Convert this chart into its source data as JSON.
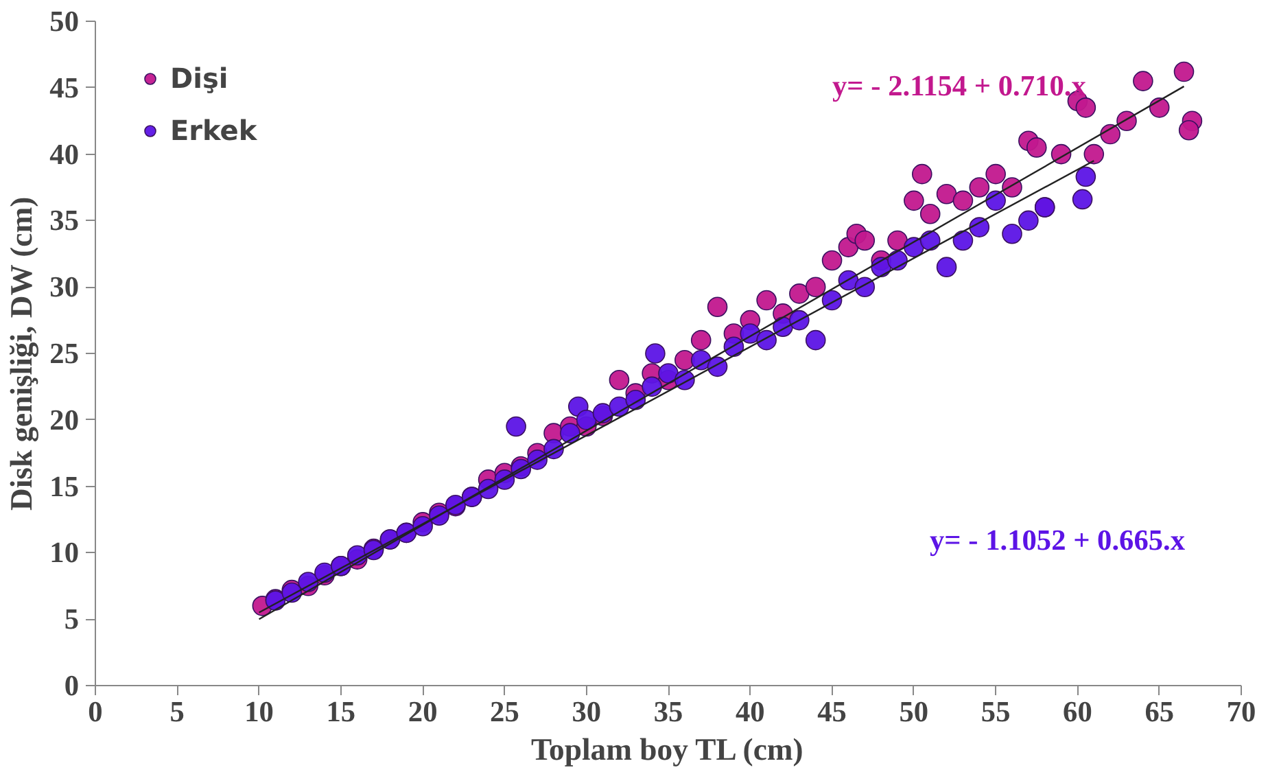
{
  "chart_data": {
    "type": "scatter",
    "xlabel": "Toplam boy TL (cm)",
    "ylabel": "Disk genişliği, DW (cm)",
    "xlim": [
      0,
      70
    ],
    "xticks": [
      0,
      5,
      10,
      15,
      20,
      25,
      30,
      35,
      40,
      45,
      50,
      55,
      60,
      65,
      70
    ],
    "ylim": [
      0,
      50
    ],
    "yticks": [
      0,
      5,
      10,
      15,
      20,
      25,
      30,
      35,
      40,
      45,
      50
    ],
    "grid": false,
    "legend": "top left",
    "marker": "circle",
    "series": [
      {
        "name": "Dişi",
        "color": "#c2188e",
        "x": [
          10.2,
          11,
          12,
          13,
          14,
          15,
          16,
          17,
          18,
          19,
          20,
          21,
          22,
          23,
          24,
          25,
          26,
          27,
          28,
          29,
          30,
          31,
          32,
          33,
          34,
          35,
          36,
          37,
          38,
          39,
          40,
          41,
          42,
          43,
          44,
          45,
          46,
          46.5,
          47,
          48,
          49,
          50,
          50.5,
          51,
          52,
          53,
          54,
          55,
          56,
          57,
          57.5,
          58,
          59,
          60,
          60.5,
          61,
          62,
          63,
          64,
          65,
          66.5,
          67,
          66.8
        ],
        "values": [
          6.0,
          6.5,
          7.2,
          7.5,
          8.3,
          9.0,
          9.5,
          10.3,
          11.0,
          11.5,
          12.3,
          13.0,
          13.5,
          14.2,
          15.5,
          16.0,
          16.5,
          17.5,
          19.0,
          19.5,
          19.5,
          20.3,
          23.0,
          22.0,
          23.5,
          23.0,
          24.5,
          26.0,
          28.5,
          26.5,
          27.5,
          29.0,
          28.0,
          29.5,
          30.0,
          32.0,
          33.0,
          34.0,
          33.5,
          32.0,
          33.5,
          36.5,
          38.5,
          35.5,
          37.0,
          36.5,
          37.5,
          38.5,
          37.5,
          41.0,
          40.5,
          36.0,
          40.0,
          44.0,
          43.5,
          40.0,
          41.5,
          42.5,
          45.5,
          43.5,
          46.2,
          42.5,
          41.8
        ]
      },
      {
        "name": "Erkek",
        "color": "#5c14e6",
        "x": [
          11,
          12,
          13,
          14,
          15,
          16,
          17,
          18,
          19,
          20,
          21,
          22,
          23,
          24,
          25,
          25.7,
          26,
          27,
          28,
          29,
          29.5,
          30,
          31,
          32,
          33,
          34,
          34.2,
          35,
          36,
          37,
          38,
          39,
          40,
          41,
          42,
          43,
          44,
          45,
          46,
          47,
          48,
          49,
          50,
          51,
          52,
          53,
          54,
          55,
          56,
          57,
          58,
          60.3,
          60.5
        ],
        "values": [
          6.4,
          7.0,
          7.8,
          8.5,
          9.0,
          9.8,
          10.2,
          11.0,
          11.5,
          12.0,
          12.8,
          13.6,
          14.2,
          14.8,
          15.5,
          19.5,
          16.3,
          17.0,
          17.8,
          19.0,
          21.0,
          20.0,
          20.5,
          21.0,
          21.5,
          22.5,
          25.0,
          23.5,
          23.0,
          24.5,
          24.0,
          25.5,
          26.5,
          26.0,
          27.0,
          27.5,
          26.0,
          29.0,
          30.5,
          30.0,
          31.5,
          32.0,
          33.0,
          33.5,
          31.5,
          33.5,
          34.5,
          36.5,
          34.0,
          35.0,
          36.0,
          36.6,
          38.3
        ]
      },
      {
        "type": "line",
        "marker": "none",
        "color": "#222222",
        "x": [
          10,
          66.5
        ],
        "values": [
          5.0,
          45.1
        ]
      },
      {
        "type": "line",
        "marker": "none",
        "color": "#222222",
        "x": [
          10,
          61
        ],
        "values": [
          5.5,
          39.5
        ]
      }
    ],
    "annotations": [
      "y= - 2.1154 + 0.710.x",
      "y=  - 1.1052 + 0.665.x"
    ]
  }
}
